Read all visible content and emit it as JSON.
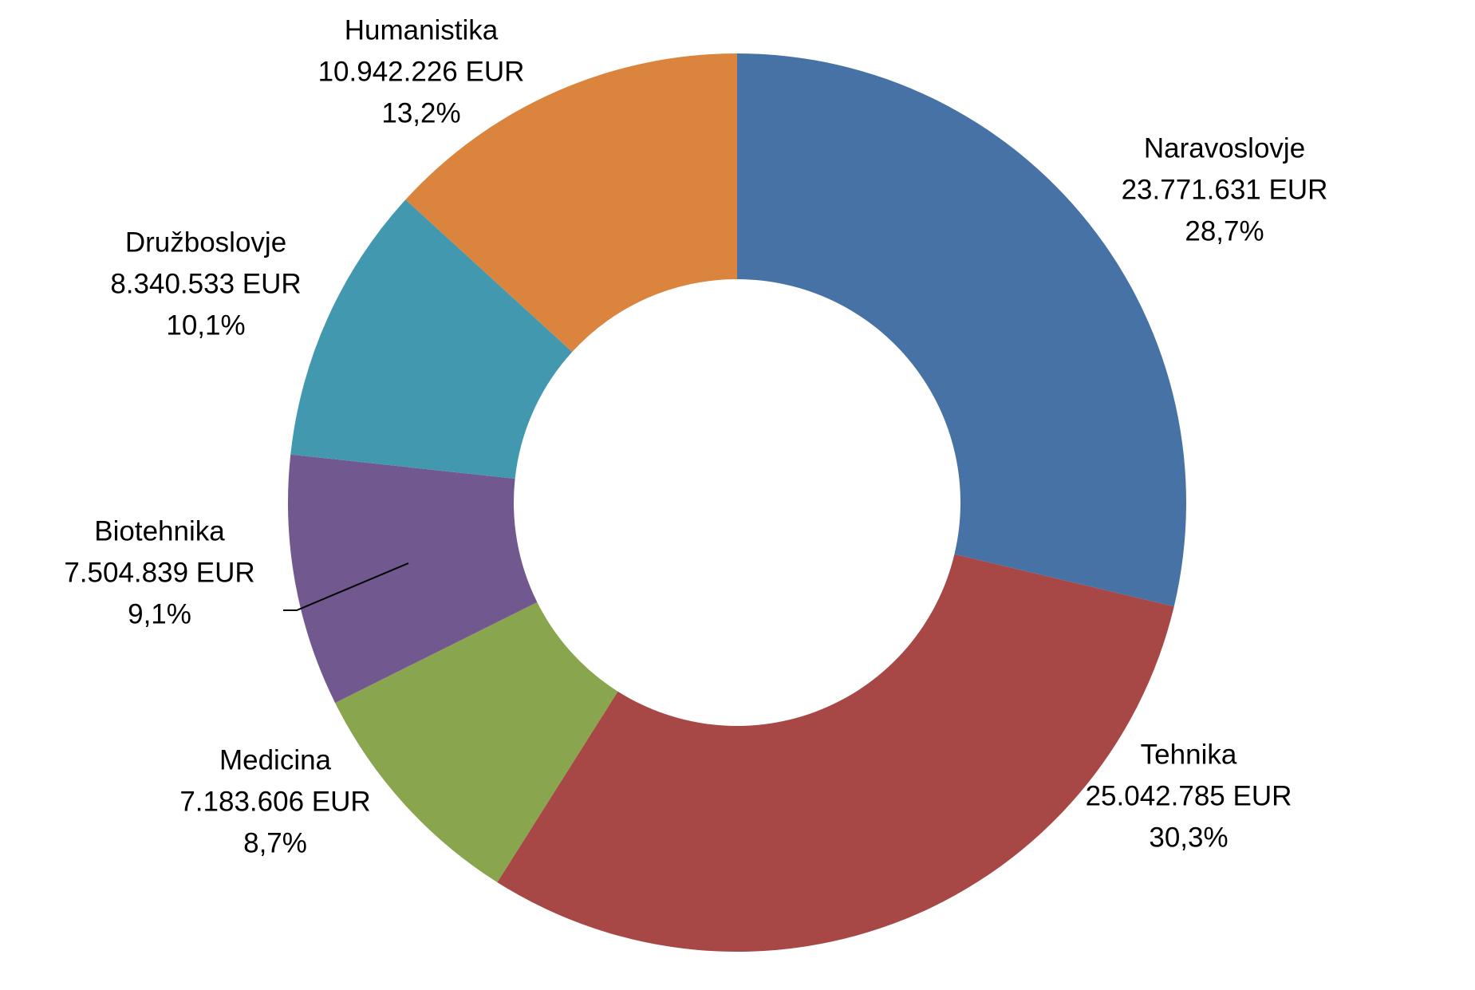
{
  "chart_data": {
    "type": "pie",
    "donut": true,
    "title": "",
    "series": [
      {
        "values": [
          23771631,
          25042785,
          7183606,
          7504839,
          8340533,
          10942226
        ]
      }
    ],
    "categories": [
      "Naravoslovje",
      "Tehnika",
      "Medicina",
      "Biotehnika",
      "Družboslovje",
      "Humanistika"
    ],
    "slices": [
      {
        "name": "Naravoslovje",
        "value": 23771631,
        "value_label": "23.771.631 EUR",
        "percent_label": "28,7%",
        "color": "#4672A5"
      },
      {
        "name": "Tehnika",
        "value": 25042785,
        "value_label": "25.042.785 EUR",
        "percent_label": "30,3%",
        "color": "#A74746"
      },
      {
        "name": "Medicina",
        "value": 7183606,
        "value_label": "7.183.606 EUR",
        "percent_label": "8,7%",
        "color": "#89A54E"
      },
      {
        "name": "Biotehnika",
        "value": 7504839,
        "value_label": "7.504.839 EUR",
        "percent_label": "9,1%",
        "color": "#71588F"
      },
      {
        "name": "Družboslovje",
        "value": 8340533,
        "value_label": "8.340.533 EUR",
        "percent_label": "10,1%",
        "color": "#4298AF"
      },
      {
        "name": "Humanistika",
        "value": 10942226,
        "value_label": "10.942.226 EUR",
        "percent_label": "13,2%",
        "color": "#DB843D"
      }
    ],
    "legend": "none"
  }
}
